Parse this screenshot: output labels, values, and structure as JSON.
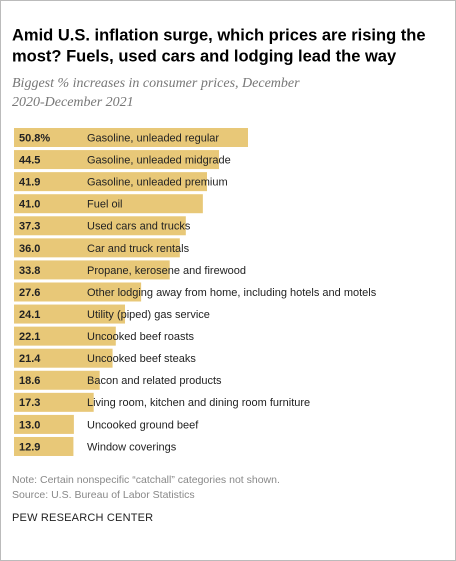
{
  "chart_data": {
    "type": "bar",
    "orientation": "horizontal",
    "title": [
      "Amid U.S. inflation surge, which prices are rising the",
      "most? Fuels, used cars and lodging lead the way"
    ],
    "subtitle": [
      "Biggest % increases in consumer prices, December",
      "2020-December 2021"
    ],
    "categories": [
      "Gasoline, unleaded regular",
      "Gasoline, unleaded midgrade",
      "Gasoline, unleaded premium",
      "Fuel oil",
      "Used cars and trucks",
      "Car and truck rentals",
      "Propane, kerosene and firewood",
      "Other lodging away from home, including hotels and motels",
      "Utility (piped) gas service",
      "Uncooked beef roasts",
      "Uncooked beef steaks",
      "Bacon and related products",
      "Living room, kitchen and dining room furniture",
      "Uncooked ground beef",
      "Window coverings"
    ],
    "values": [
      50.8,
      44.5,
      41.9,
      41.0,
      37.3,
      36.0,
      33.8,
      27.6,
      24.1,
      22.1,
      21.4,
      18.6,
      17.3,
      13.0,
      12.9
    ],
    "value_labels": [
      "50.8%",
      "44.5",
      "41.9",
      "41.0",
      "37.3",
      "36.0",
      "33.8",
      "27.6",
      "24.1",
      "22.1",
      "21.4",
      "18.6",
      "17.3",
      "13.0",
      "12.9"
    ],
    "color": "#e8c878",
    "notes": [
      "Note: Certain nonspecific “catchall” categories not shown.",
      "Source: U.S. Bureau of Labor Statistics"
    ],
    "credit": "PEW RESEARCH CENTER"
  }
}
